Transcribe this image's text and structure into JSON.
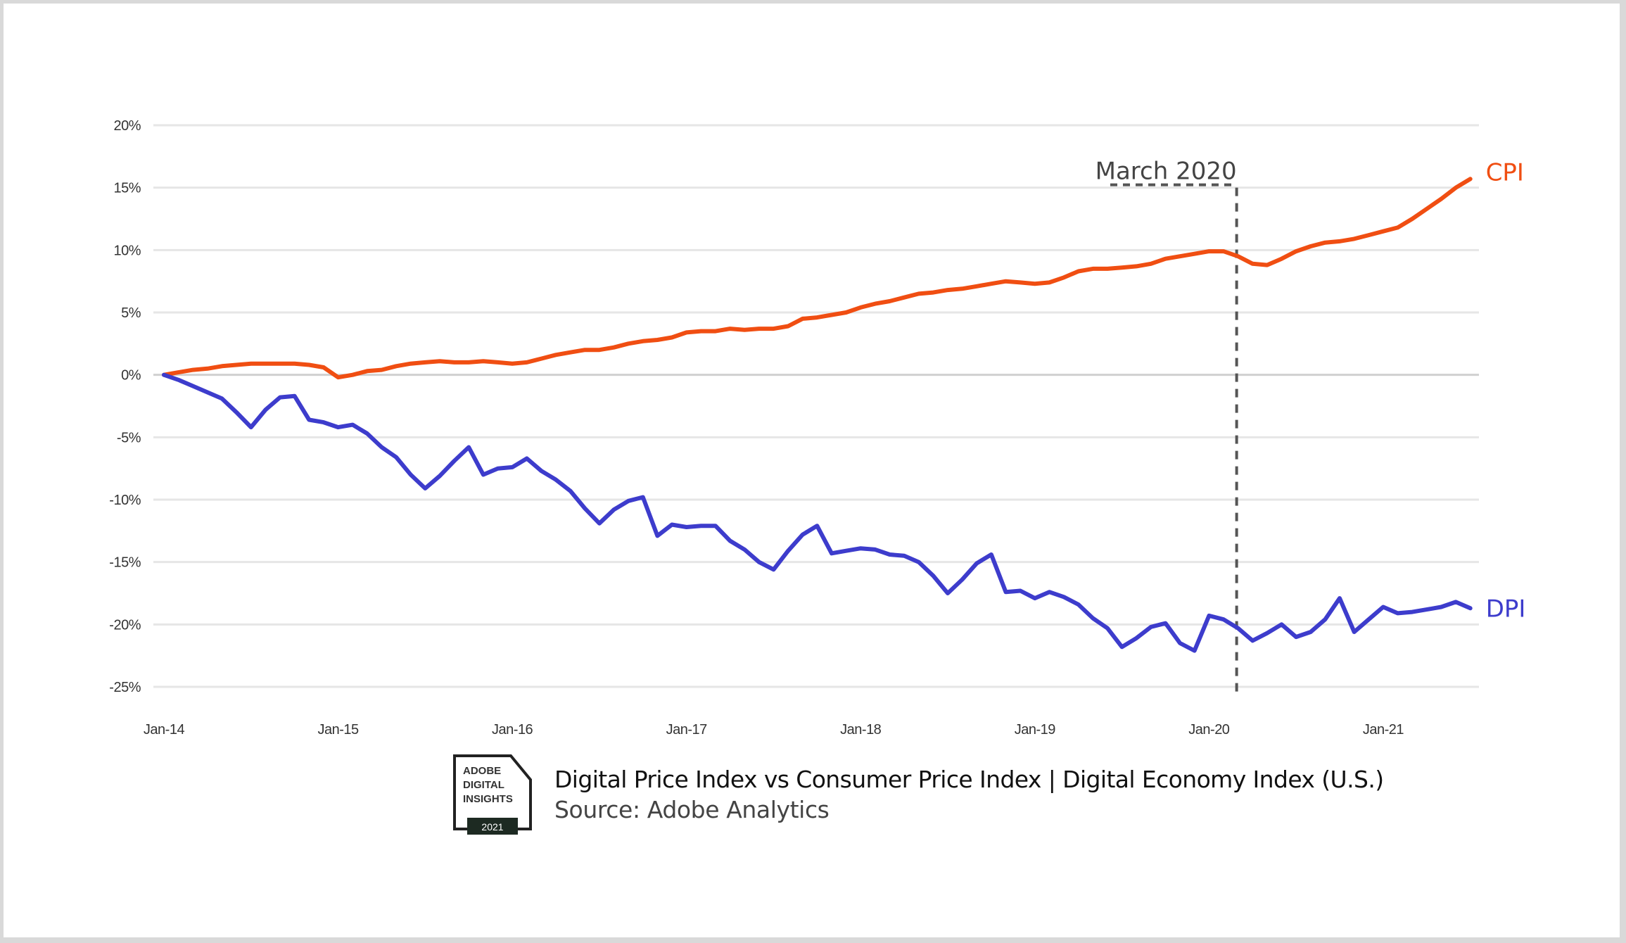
{
  "chart_data": {
    "type": "line",
    "title": "Digital Price Index vs Consumer Price Index | Digital Economy Index (U.S.)",
    "source": "Source: Adobe Analytics",
    "xlabel": "",
    "ylabel": "",
    "x_start": "Jan-14",
    "x_frequency": "monthly",
    "x_ticks": [
      "Jan-14",
      "Jan-15",
      "Jan-16",
      "Jan-17",
      "Jan-18",
      "Jan-19",
      "Jan-20",
      "Jan-21"
    ],
    "y_ticks": [
      "20%",
      "15%",
      "10%",
      "5%",
      "0%",
      "-5%",
      "-10%",
      "-15%",
      "-20%",
      "-25%"
    ],
    "ylim": [
      -25,
      20
    ],
    "y_unit": "%",
    "grid": true,
    "legend": "inline labels at right end of lines",
    "annotations": [
      {
        "label": "March 2020",
        "x_month_index": 74,
        "style": "dashed vertical line"
      }
    ],
    "series": [
      {
        "name": "CPI",
        "color": "#f04e12",
        "values": [
          0.0,
          0.2,
          0.4,
          0.5,
          0.7,
          0.8,
          0.9,
          0.9,
          0.9,
          0.9,
          0.8,
          0.6,
          -0.2,
          0.0,
          0.3,
          0.4,
          0.7,
          0.9,
          1.0,
          1.1,
          1.0,
          1.0,
          1.1,
          1.0,
          0.9,
          1.0,
          1.3,
          1.6,
          1.8,
          2.0,
          2.0,
          2.2,
          2.5,
          2.7,
          2.8,
          3.0,
          3.4,
          3.5,
          3.5,
          3.7,
          3.6,
          3.7,
          3.7,
          3.9,
          4.5,
          4.6,
          4.8,
          5.0,
          5.4,
          5.7,
          5.9,
          6.2,
          6.5,
          6.6,
          6.8,
          6.9,
          7.1,
          7.3,
          7.5,
          7.4,
          7.3,
          7.4,
          7.8,
          8.3,
          8.5,
          8.5,
          8.6,
          8.7,
          8.9,
          9.3,
          9.5,
          9.7,
          9.9,
          9.9,
          9.5,
          8.9,
          8.8,
          9.3,
          9.9,
          10.3,
          10.6,
          10.7,
          10.9,
          11.2,
          11.5,
          11.8,
          12.5,
          13.3,
          14.1,
          15.0,
          15.7
        ]
      },
      {
        "name": "DPI",
        "color": "#3d3ccc",
        "values": [
          0.0,
          -0.4,
          -0.9,
          -1.4,
          -1.9,
          -3.0,
          -4.2,
          -2.8,
          -1.8,
          -1.7,
          -3.6,
          -3.8,
          -4.2,
          -4.0,
          -4.7,
          -5.8,
          -6.6,
          -8.0,
          -9.1,
          -8.1,
          -6.9,
          -5.8,
          -8.0,
          -7.5,
          -7.4,
          -6.7,
          -7.7,
          -8.4,
          -9.3,
          -10.7,
          -11.9,
          -10.8,
          -10.1,
          -9.8,
          -12.9,
          -12.0,
          -12.2,
          -12.1,
          -12.1,
          -13.3,
          -14.0,
          -15.0,
          -15.6,
          -14.1,
          -12.8,
          -12.1,
          -14.3,
          -14.1,
          -13.9,
          -14.0,
          -14.4,
          -14.5,
          -15.0,
          -16.1,
          -17.5,
          -16.4,
          -15.1,
          -14.4,
          -17.4,
          -17.3,
          -17.9,
          -17.4,
          -17.8,
          -18.4,
          -19.5,
          -20.3,
          -21.8,
          -21.1,
          -20.2,
          -19.9,
          -21.5,
          -22.1,
          -19.3,
          -19.6,
          -20.3,
          -21.3,
          -20.7,
          -20.0,
          -21.0,
          -20.6,
          -19.6,
          -17.9,
          -20.6,
          -19.6,
          -18.6,
          -19.1,
          -19.0,
          -18.8,
          -18.6,
          -18.2,
          -18.7
        ]
      }
    ]
  },
  "logo": {
    "lines": [
      "ADOBE",
      "DIGITAL",
      "INSIGHTS"
    ],
    "year": "2021"
  }
}
